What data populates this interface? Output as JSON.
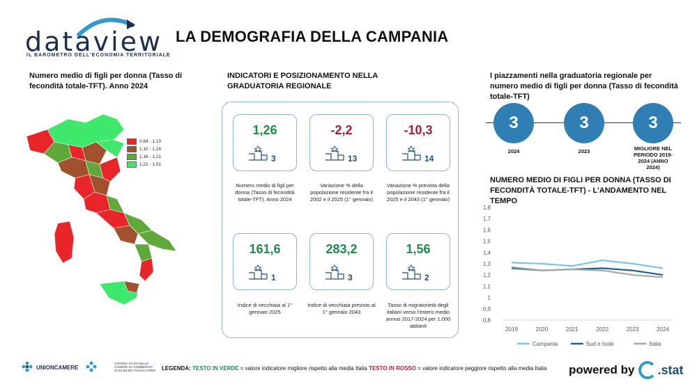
{
  "header": {
    "logo_text": "dataview",
    "logo_subtitle": "IL BAROMETRO DELL'ECONOMIA TERRITORIALE",
    "title": "LA DEMOGRAFIA DELLA CAMPANIA"
  },
  "map_section": {
    "title": "Numero medio di figli per donna (Tasso di fecondità totale-TFT). Anno 2024",
    "legend": [
      {
        "label": "0,84 - 1,10",
        "color": "#e8262a"
      },
      {
        "label": "1,10 - 1,16",
        "color": "#a0522d"
      },
      {
        "label": "1,16 - 1,21",
        "color": "#5fa83a"
      },
      {
        "label": "1,21 - 1,51",
        "color": "#3ee86a"
      }
    ]
  },
  "indicators": {
    "title": "INDICATORI E POSIZIONAMENTO NELLA GRADUATORIA REGIONALE",
    "cards": [
      {
        "value": "1,26",
        "rank": "3",
        "tone": "good",
        "desc": "Numero medio di figli per donna (Tasso di fecondità totale-TFT). Anno 2024"
      },
      {
        "value": "-2,2",
        "rank": "13",
        "tone": "bad",
        "desc": "Variazione % della popolazione residente fra il 2002 e il 2025 (1° gennaio)"
      },
      {
        "value": "-10,3",
        "rank": "14",
        "tone": "bad",
        "desc": "Variazione % prevista della popolazione residente fra il 2025 e il 2043 (1° gennaio)"
      },
      {
        "value": "161,6",
        "rank": "1",
        "tone": "good",
        "desc": "Indice di vecchiaia al 1° gennaio 2025"
      },
      {
        "value": "283,2",
        "rank": "3",
        "tone": "good",
        "desc": "Indice di vecchiaia previsto al 1° gennaio 2043"
      },
      {
        "value": "1,56",
        "rank": "2",
        "tone": "good",
        "desc": "Tasso di migratorietà degli italiani verso l'estero medio annuo 2017-2024 per 1.000 abitanti"
      }
    ]
  },
  "rankings": {
    "title": "I piazzamenti nella graduatoria regionale per numero medio di figli per donna (Tasso di fecondità totale-TFT)",
    "items": [
      {
        "value": "3",
        "label": "2024"
      },
      {
        "value": "3",
        "label": "2023"
      },
      {
        "value": "3",
        "label": "MIGLIORE NEL PERIODO 2019-2024 (ANNO 2024)"
      }
    ]
  },
  "chart_section": {
    "title": "NUMERO MEDIO DI FIGLI PER DONNA (TASSO DI FECONDITÀ TOTALE-TFT) - L'ANDAMENTO NEL TEMPO"
  },
  "chart_data": {
    "type": "line",
    "x": [
      "2019",
      "2020",
      "2021",
      "2022",
      "2023",
      "2024"
    ],
    "yticks": [
      "1,8",
      "1,7",
      "1,6",
      "1,5",
      "1,4",
      "1,3",
      "1,2",
      "1,1",
      "1",
      "0,9",
      "0,8"
    ],
    "ylim": [
      0.8,
      1.8
    ],
    "series": [
      {
        "name": "Campania",
        "color": "#7cc3ea",
        "values": [
          1.31,
          1.3,
          1.28,
          1.33,
          1.3,
          1.26
        ]
      },
      {
        "name": "Sud e Isole",
        "color": "#1f5f8b",
        "values": [
          1.26,
          1.24,
          1.25,
          1.26,
          1.24,
          1.2
        ]
      },
      {
        "name": "Italia",
        "color": "#a6a6a6",
        "values": [
          1.27,
          1.24,
          1.25,
          1.24,
          1.2,
          1.18
        ]
      }
    ],
    "legend_position": "bottom",
    "grid": false
  },
  "footer": {
    "unioncamere": "UNIONCAMERE",
    "tagliacarne": "CENTRO STUDI DELLE CAMERE DI COMMERCIO GUGLIELMO TAGLIACARNE",
    "legend_label": "LEGENDA:",
    "legend_green": "TESTO IN VERDE",
    "legend_green_text": " = valore indicatore migliore rispetto alla media Italia ",
    "legend_red": "TESTO IN ROSSO",
    "legend_red_text": " = valore indicatore peggiore rispetto alla media Italia",
    "powered": "powered by",
    "cstat": ".stat"
  }
}
